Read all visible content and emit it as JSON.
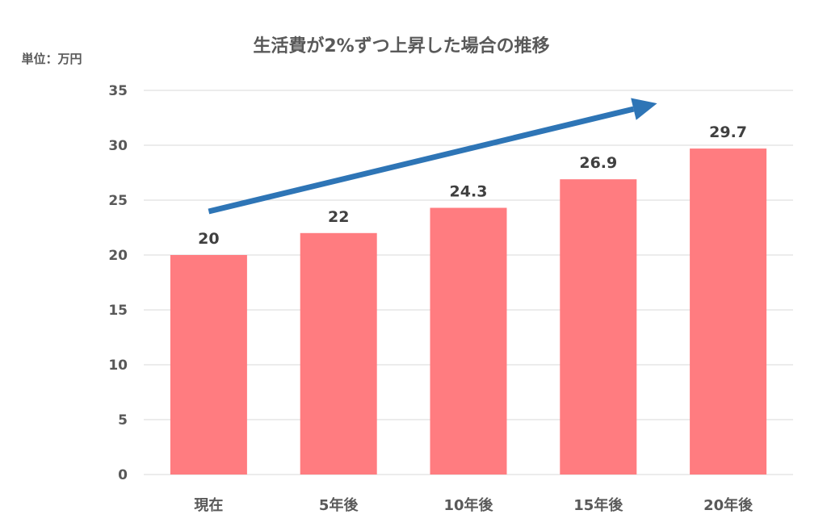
{
  "chart_data": {
    "type": "bar",
    "title": "生活費が2%ずつ上昇した場合の推移",
    "unit_label": "単位：万円",
    "categories": [
      "現在",
      "5年後",
      "10年後",
      "15年後",
      "20年後"
    ],
    "values": [
      20,
      22,
      24.3,
      26.9,
      29.7
    ],
    "data_labels": [
      "20",
      "22",
      "24.3",
      "26.9",
      "29.7"
    ],
    "ylim": [
      0,
      35
    ],
    "yticks": [
      0,
      5,
      10,
      15,
      20,
      25,
      30,
      35
    ],
    "grid": true,
    "legend": "none",
    "bar_color": "#ff7c80",
    "trend_arrow": {
      "color": "#2e75b6",
      "direction": "up-right"
    }
  }
}
